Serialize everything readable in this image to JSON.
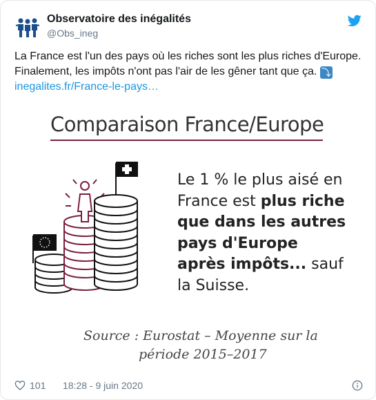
{
  "account": {
    "name": "Observatoire des inégalités",
    "handle": "@Obs_ineg",
    "avatar_icon": "people-holding-hands-icon",
    "brand_color": "#1da1f2"
  },
  "tweet": {
    "text": "La France est l'un des pays où les riches sont les plus riches d'Europe. Finalement, les impôts n'ont pas l'air de les gêner tant que ça. ",
    "link_emoji": "⤵",
    "link_text": "inegalites.fr/France-le-pays…"
  },
  "card": {
    "title": "Comparaison France/Europe",
    "headline_1": "Le 1 % le plus aisé en France est ",
    "headline_bold": "plus riche que dans les autres pays d'Europe après impôts...",
    "headline_2": " sauf la Suisse.",
    "source_line1": "Source : Eurostat – Moyenne sur la",
    "source_line2": "période 2015–2017",
    "accent_color": "#7a1f3d"
  },
  "footer": {
    "likes": "101",
    "timestamp": "18:28 - 9 juin 2020"
  }
}
